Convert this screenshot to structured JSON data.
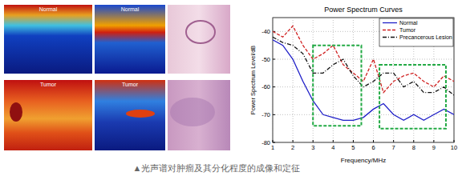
{
  "chart_data": {
    "type": "line",
    "title": "Power Spectrum Curves",
    "x_label": "Frequency/MHz",
    "y_label": "Power Spectrum Level/dB",
    "x": [
      1,
      1.5,
      2,
      2.5,
      3,
      3.5,
      4,
      4.5,
      5,
      5.5,
      6,
      6.5,
      7,
      7.5,
      8,
      8.5,
      9,
      9.5,
      10
    ],
    "series": [
      {
        "name": "Normal",
        "color": "#1f1fc8",
        "line_style": "solid",
        "values": [
          -43,
          -45,
          -50,
          -58,
          -65,
          -70,
          -71,
          -72,
          -72,
          -71,
          -68,
          -66,
          -70,
          -72,
          -70,
          -72,
          -70,
          -68,
          -70
        ]
      },
      {
        "name": "Tumor",
        "color": "#d02020",
        "line_style": "dashed",
        "values": [
          -40,
          -42,
          -38,
          -45,
          -50,
          -48,
          -45,
          -52,
          -55,
          -58,
          -50,
          -62,
          -58,
          -56,
          -55,
          -58,
          -60,
          -56,
          -58
        ]
      },
      {
        "name": "Precancerous Lesion",
        "color": "#111111",
        "line_style": "dashdot",
        "values": [
          -42,
          -44,
          -45,
          -48,
          -55,
          -55,
          -52,
          -50,
          -56,
          -60,
          -58,
          -55,
          -55,
          -60,
          -58,
          -62,
          -62,
          -60,
          -63
        ]
      }
    ],
    "highlight_regions": [
      {
        "x": [
          3,
          5.4
        ],
        "y": [
          -45,
          -74
        ],
        "color": "#22aa44"
      },
      {
        "x": [
          6.3,
          9.6
        ],
        "y": [
          -52,
          -75
        ],
        "color": "#22aa44"
      }
    ],
    "xlim": [
      1,
      10
    ],
    "xticks": [
      1,
      2,
      3,
      4,
      5,
      6,
      7,
      8,
      9,
      10
    ],
    "ylim": [
      -80,
      -35
    ],
    "yticks": [
      -80,
      -70,
      -60,
      -50,
      -40
    ],
    "grid": true,
    "legend": "upper right"
  },
  "images": [
    {
      "label": "Normal"
    },
    {
      "label": "Normal"
    },
    {
      "label": "Tumor"
    },
    {
      "label": "Tumor"
    }
  ],
  "caption": "▲光声谱对肿瘤及其分化程度的成像和定征"
}
